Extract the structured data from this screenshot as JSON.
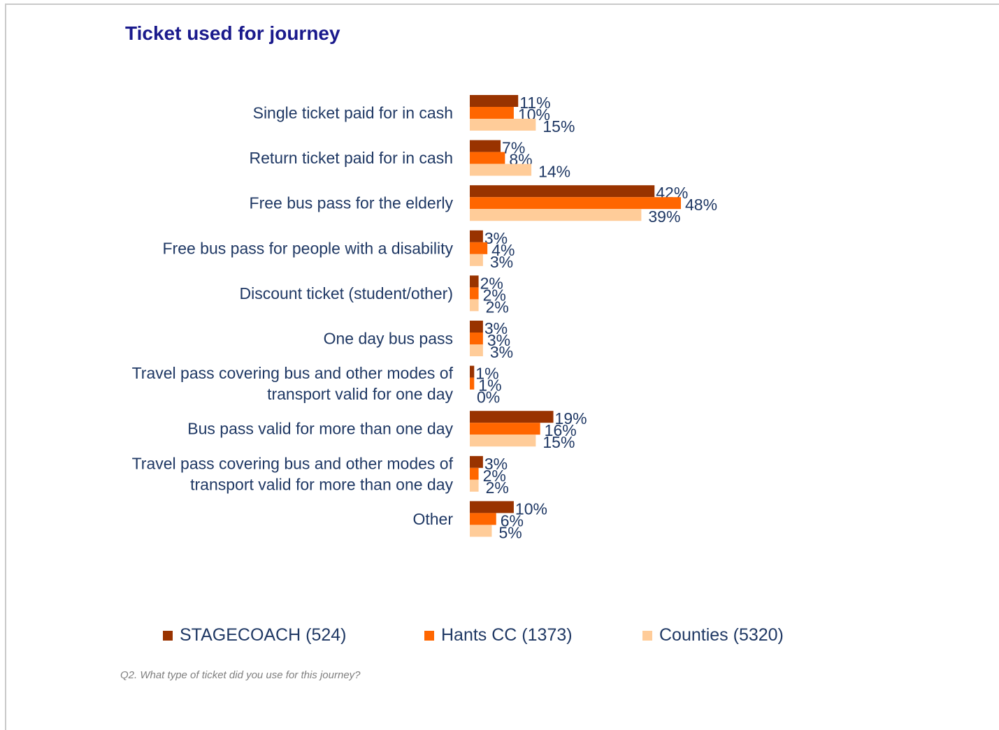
{
  "title": "Ticket used for journey",
  "footnote": "Q2.  What type of ticket did you use for this journey?",
  "legend": [
    {
      "label": "STAGECOACH  (524)",
      "color": "#993300"
    },
    {
      "label": "Hants CC (1373)",
      "color": "#ff6600"
    },
    {
      "label": "Counties (5320)",
      "color": "#ffcc99"
    }
  ],
  "chart_data": {
    "type": "bar",
    "orientation": "horizontal",
    "title": "Ticket used for journey",
    "xlabel": "",
    "ylabel": "",
    "xlim": [
      0,
      60
    ],
    "grid": false,
    "legend_position": "bottom",
    "categories": [
      [
        "Single ticket paid for in cash"
      ],
      [
        "Return ticket paid for in cash"
      ],
      [
        "Free bus pass for the elderly"
      ],
      [
        "Free bus pass for people with a disability"
      ],
      [
        "Discount ticket (student/other)"
      ],
      [
        "One day bus pass"
      ],
      [
        "Travel pass covering bus and other modes of",
        "transport valid for one day"
      ],
      [
        "Bus pass valid for more than one day"
      ],
      [
        "Travel pass covering bus and other modes of",
        "transport valid for more than one day"
      ],
      [
        "Other"
      ]
    ],
    "series": [
      {
        "name": "STAGECOACH  (524)",
        "color": "#993300",
        "values": [
          11,
          7,
          42,
          3,
          2,
          3,
          1,
          19,
          3,
          10
        ]
      },
      {
        "name": "Hants CC (1373)",
        "color": "#ff6600",
        "values": [
          10,
          8,
          48,
          4,
          2,
          3,
          1,
          16,
          2,
          6
        ]
      },
      {
        "name": "Counties (5320)",
        "color": "#ffcc99",
        "values": [
          15,
          14,
          39,
          3,
          2,
          3,
          0,
          15,
          2,
          5
        ]
      }
    ],
    "value_suffix": "%"
  }
}
